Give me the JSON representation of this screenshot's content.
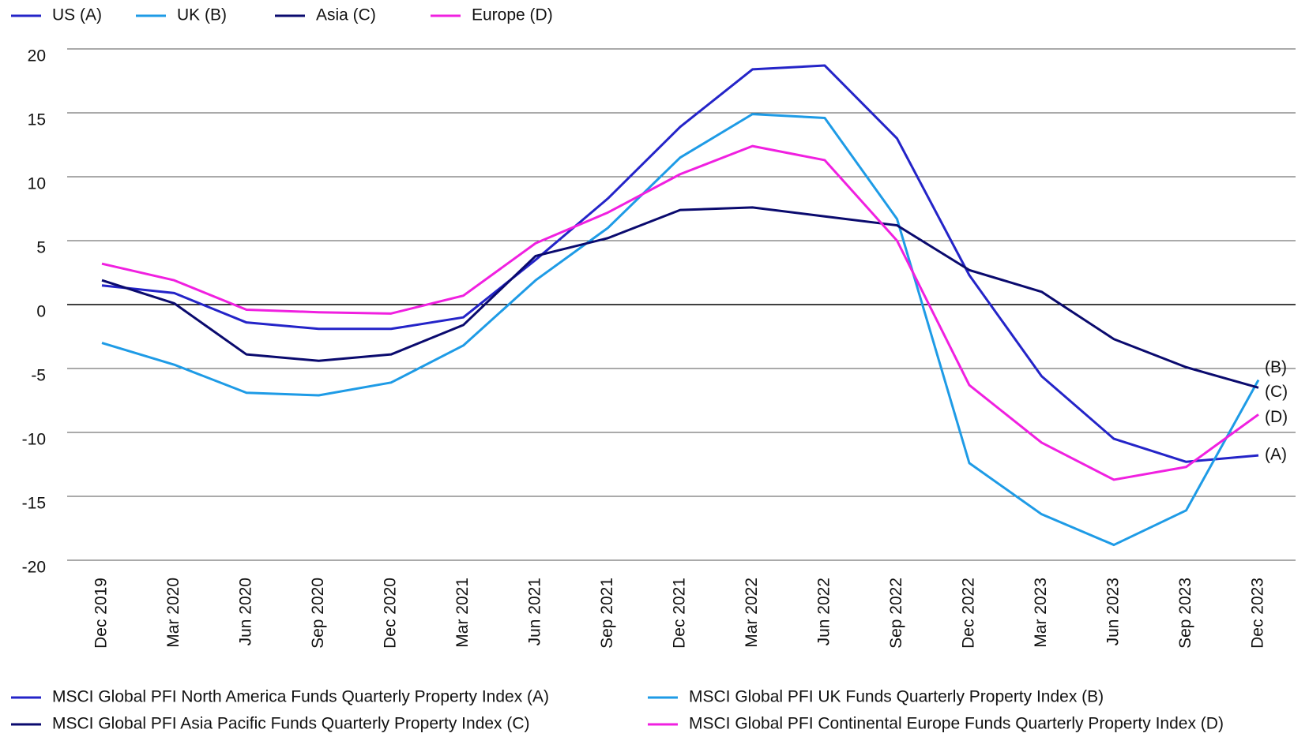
{
  "chart_data": {
    "type": "line",
    "categories": [
      "Dec 2019",
      "Mar 2020",
      "Jun 2020",
      "Sep 2020",
      "Dec 2020",
      "Mar 2021",
      "Jun 2021",
      "Sep 2021",
      "Dec 2021",
      "Mar 2022",
      "Jun 2022",
      "Sep 2022",
      "Dec 2022",
      "Mar 2023",
      "Jun 2023",
      "Sep 2023",
      "Dec 2023"
    ],
    "series": [
      {
        "name": "US (A)",
        "description": "MSCI Global PFI North America Funds Quarterly Property Index (A)",
        "end_label": "(A)",
        "color": "#2424c8",
        "values": [
          1.5,
          0.9,
          -1.4,
          -1.9,
          -1.9,
          -1.0,
          3.5,
          8.3,
          13.9,
          18.4,
          18.7,
          13.0,
          2.3,
          -5.6,
          -10.5,
          -12.3,
          -11.8
        ]
      },
      {
        "name": "UK (B)",
        "description": "MSCI Global PFI UK Funds Quarterly Property Index (B)",
        "end_label": "(B)",
        "color": "#1e9be6",
        "values": [
          -3.0,
          -4.7,
          -6.9,
          -7.1,
          -6.1,
          -3.2,
          1.9,
          6.0,
          11.5,
          14.9,
          14.6,
          6.7,
          -12.4,
          -16.4,
          -18.8,
          -16.1,
          -5.9
        ]
      },
      {
        "name": "Asia (C)",
        "description": "MSCI Global PFI Asia Pacific Funds Quarterly Property Index (C)",
        "end_label": "(C)",
        "color": "#0a0a6e",
        "values": [
          1.9,
          0.1,
          -3.9,
          -4.4,
          -3.9,
          -1.6,
          3.8,
          5.2,
          7.4,
          7.6,
          6.9,
          6.2,
          2.7,
          1.0,
          -2.7,
          -4.9,
          -6.5
        ]
      },
      {
        "name": "Europe (D)",
        "description": "MSCI Global PFI Continental Europe Funds Quarterly Property Index (D)",
        "end_label": "(D)",
        "color": "#f020e0",
        "values": [
          3.2,
          1.9,
          -0.4,
          -0.6,
          -0.7,
          0.7,
          4.8,
          7.2,
          10.2,
          12.4,
          11.3,
          5.0,
          -6.3,
          -10.8,
          -13.7,
          -12.7,
          -8.6
        ]
      }
    ],
    "ylim": [
      -20,
      20
    ],
    "yticks": [
      20,
      15,
      10,
      5,
      0,
      -5,
      -10,
      -15,
      -20
    ],
    "grid": true
  }
}
